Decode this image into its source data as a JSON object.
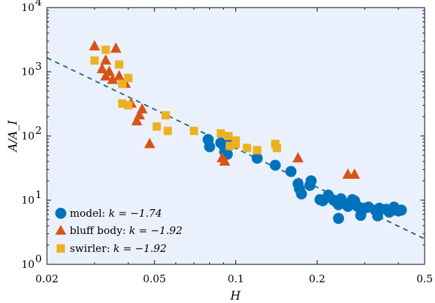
{
  "chart_data": {
    "type": "scatter",
    "title": "",
    "xlabel": "H",
    "ylabel": "A/A_I",
    "xscale": "log",
    "yscale": "log",
    "xlim": [
      0.02,
      0.5
    ],
    "ylim": [
      1,
      10000
    ],
    "x_ticks": [
      0.02,
      0.05,
      0.1,
      0.2,
      0.5
    ],
    "x_tick_labels": [
      "0.02",
      "0.05",
      "0.1",
      "0.2",
      "0.5"
    ],
    "y_ticks": [
      1,
      10,
      100,
      1000,
      10000
    ],
    "y_tick_labels": [
      "10",
      "10",
      "10",
      "10",
      "10"
    ],
    "y_tick_exponents": [
      "0",
      "1",
      "2",
      "3",
      "4"
    ],
    "legend_position": "bottom-left",
    "background_color": "#eaf1fc",
    "series": [
      {
        "name": "model",
        "legend_label": "model: ",
        "legend_k": "k = −1.74",
        "marker": "circle",
        "color": "#0072bd",
        "points": [
          [
            0.079,
            88
          ],
          [
            0.08,
            68
          ],
          [
            0.088,
            78
          ],
          [
            0.09,
            72
          ],
          [
            0.092,
            68
          ],
          [
            0.094,
            80
          ],
          [
            0.093,
            52
          ],
          [
            0.091,
            57
          ],
          [
            0.12,
            45
          ],
          [
            0.14,
            35
          ],
          [
            0.16,
            28
          ],
          [
            0.17,
            18
          ],
          [
            0.172,
            15
          ],
          [
            0.175,
            12.5
          ],
          [
            0.19,
            20
          ],
          [
            0.188,
            17
          ],
          [
            0.205,
            10.2
          ],
          [
            0.21,
            9.8
          ],
          [
            0.22,
            12
          ],
          [
            0.23,
            10
          ],
          [
            0.235,
            9.5
          ],
          [
            0.24,
            8.5
          ],
          [
            0.245,
            10.5
          ],
          [
            0.25,
            9
          ],
          [
            0.26,
            8
          ],
          [
            0.27,
            10.2
          ],
          [
            0.275,
            9.8
          ],
          [
            0.28,
            8.2
          ],
          [
            0.285,
            7.8
          ],
          [
            0.29,
            5.8
          ],
          [
            0.3,
            7.5
          ],
          [
            0.31,
            7.8
          ],
          [
            0.33,
            7.0
          ],
          [
            0.335,
            5.7
          ],
          [
            0.34,
            7.5
          ],
          [
            0.36,
            7.2
          ],
          [
            0.37,
            6.5
          ],
          [
            0.38,
            7.0
          ],
          [
            0.385,
            7.8
          ],
          [
            0.4,
            6.8
          ],
          [
            0.41,
            7.0
          ],
          [
            0.24,
            5.2
          ]
        ]
      },
      {
        "name": "bluff body",
        "legend_label": "bluff body: ",
        "legend_k": "k = −1.92",
        "marker": "triangle",
        "color": "#d95319",
        "points": [
          [
            0.03,
            2500
          ],
          [
            0.033,
            1500
          ],
          [
            0.034,
            1000
          ],
          [
            0.032,
            1100
          ],
          [
            0.033,
            850
          ],
          [
            0.035,
            750
          ],
          [
            0.036,
            2300
          ],
          [
            0.037,
            850
          ],
          [
            0.039,
            650
          ],
          [
            0.041,
            320
          ],
          [
            0.044,
            210
          ],
          [
            0.045,
            260
          ],
          [
            0.043,
            170
          ],
          [
            0.048,
            75
          ],
          [
            0.089,
            45
          ],
          [
            0.091,
            40
          ],
          [
            0.17,
            45
          ],
          [
            0.26,
            25
          ],
          [
            0.275,
            25
          ]
        ]
      },
      {
        "name": "swirler",
        "legend_label": "swirler: ",
        "legend_k": "k = −1.92",
        "marker": "square",
        "color": "#edb120",
        "points": [
          [
            0.03,
            1500
          ],
          [
            0.033,
            2200
          ],
          [
            0.037,
            1300
          ],
          [
            0.038,
            650
          ],
          [
            0.04,
            800
          ],
          [
            0.038,
            320
          ],
          [
            0.04,
            300
          ],
          [
            0.051,
            140
          ],
          [
            0.055,
            210
          ],
          [
            0.056,
            120
          ],
          [
            0.07,
            120
          ],
          [
            0.088,
            110
          ],
          [
            0.094,
            100
          ],
          [
            0.095,
            70
          ],
          [
            0.1,
            75
          ],
          [
            0.1,
            85
          ],
          [
            0.11,
            65
          ],
          [
            0.12,
            60
          ],
          [
            0.14,
            75
          ],
          [
            0.142,
            65
          ]
        ]
      }
    ],
    "fit_line": {
      "style": "dashed",
      "color": "#1f6b6b",
      "from": [
        0.02,
        1650
      ],
      "to": [
        0.5,
        2.5
      ]
    }
  }
}
